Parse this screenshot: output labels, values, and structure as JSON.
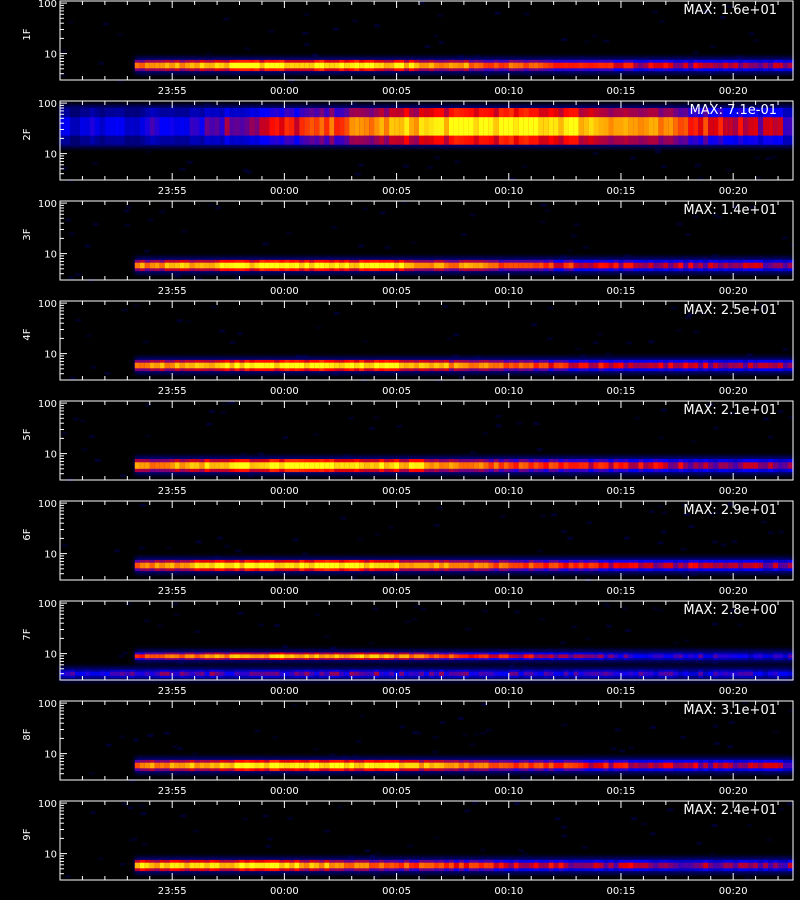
{
  "chart_data": {
    "type": "heatmap",
    "time_ticks": [
      "23:55",
      "00:00",
      "00:05",
      "00:10",
      "00:15",
      "00:20"
    ],
    "y_tick_labels": [
      "100",
      "10"
    ],
    "y_scale": "log",
    "color_scale": {
      "low": "#000000",
      "mid1": "#0000ff",
      "mid2": "#ff0000",
      "high": "#ffff00"
    },
    "panels": [
      {
        "name": "1F",
        "max": "MAX: 1.6e+01",
        "bands": [
          {
            "time_start": "23:53:20",
            "time_end": "00:22:40",
            "y_low": 4.5,
            "y_high": 7.5,
            "peak_at": "00:01",
            "peak_level": 1.0,
            "base_level": 0.5
          }
        ]
      },
      {
        "name": "2F",
        "max": "MAX: 7.1e-01",
        "bands": [
          {
            "time_start": "23:50:00",
            "time_end": "00:22:40",
            "y_low": 15,
            "y_high": 80,
            "peak_at": "00:10",
            "peak_level": 1.0,
            "base_level": 0.25
          }
        ]
      },
      {
        "name": "3F",
        "max": "MAX: 1.4e+01",
        "bands": [
          {
            "time_start": "23:53:20",
            "time_end": "00:22:40",
            "y_low": 4.5,
            "y_high": 7.5,
            "peak_at": "00:01",
            "peak_level": 1.0,
            "base_level": 0.5
          }
        ]
      },
      {
        "name": "4F",
        "max": "MAX: 2.5e+01",
        "bands": [
          {
            "time_start": "23:53:20",
            "time_end": "00:22:40",
            "y_low": 4.5,
            "y_high": 7.5,
            "peak_at": "00:01",
            "peak_level": 1.0,
            "base_level": 0.5
          }
        ]
      },
      {
        "name": "5F",
        "max": "MAX: 2.1e+01",
        "bands": [
          {
            "time_start": "23:53:20",
            "time_end": "00:22:40",
            "y_low": 4.3,
            "y_high": 7.8,
            "peak_at": "00:01",
            "peak_level": 1.0,
            "base_level": 0.5
          }
        ]
      },
      {
        "name": "6F",
        "max": "MAX: 2.9e+01",
        "bands": [
          {
            "time_start": "23:53:20",
            "time_end": "00:22:40",
            "y_low": 4.5,
            "y_high": 7.5,
            "peak_at": "00:01",
            "peak_level": 1.0,
            "base_level": 0.5
          }
        ]
      },
      {
        "name": "7F",
        "max": "MAX: 2.8e+00",
        "bands": [
          {
            "time_start": "23:53:20",
            "time_end": "00:22:40",
            "y_low": 7.5,
            "y_high": 10.5,
            "peak_at": "00:01",
            "peak_level": 0.9,
            "base_level": 0.35
          },
          {
            "time_start": "23:50:00",
            "time_end": "00:22:40",
            "y_low": 3.3,
            "y_high": 4.8,
            "peak_at": "00:01",
            "peak_level": 0.45,
            "base_level": 0.35
          }
        ]
      },
      {
        "name": "8F",
        "max": "MAX: 3.1e+01",
        "bands": [
          {
            "time_start": "23:53:20",
            "time_end": "00:22:40",
            "y_low": 4.5,
            "y_high": 7.5,
            "peak_at": "00:01",
            "peak_level": 1.0,
            "base_level": 0.5
          }
        ]
      },
      {
        "name": "9F",
        "max": "MAX: 2.4e+01",
        "bands": [
          {
            "time_start": "23:53:20",
            "time_end": "00:22:40",
            "y_low": 4.5,
            "y_high": 7.5,
            "peak_at": "23:57",
            "peak_level": 0.95,
            "base_level": 0.5
          }
        ]
      }
    ]
  }
}
